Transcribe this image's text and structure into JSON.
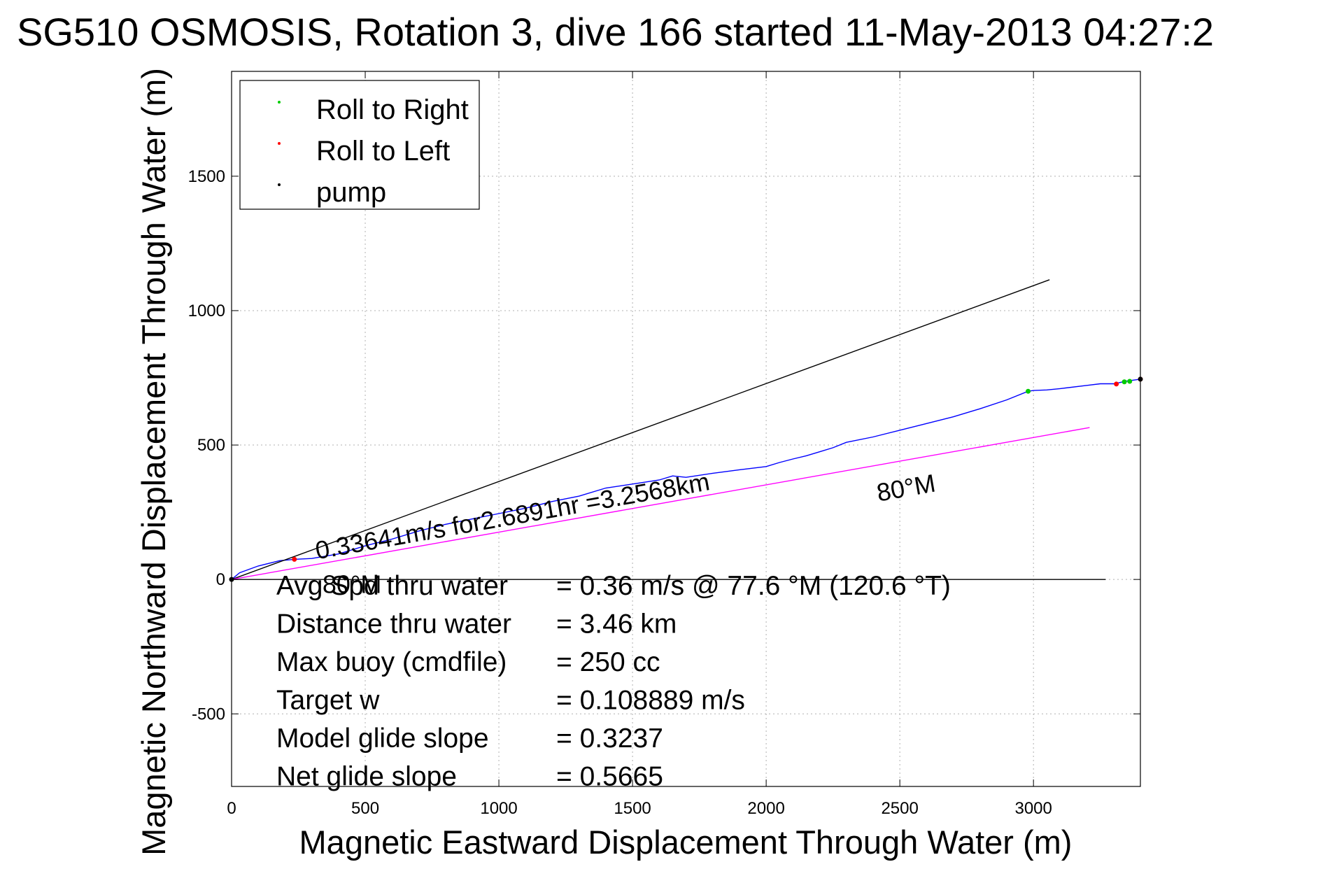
{
  "chart_data": {
    "type": "line",
    "title": "SG510 OSMOSIS, Rotation 3, dive 166 started 11-May-2013 04:27:2",
    "xlabel": "Magnetic Eastward Displacement Through Water (m)",
    "ylabel": "Magnetic Northward Displacement Through Water (m)",
    "xlim": [
      0,
      3400
    ],
    "ylim": [
      -770,
      1890
    ],
    "xticks": [
      0,
      500,
      1000,
      1500,
      2000,
      2500,
      3000
    ],
    "yticks": [
      -500,
      0,
      500,
      1000,
      1500
    ],
    "grid": true,
    "legend": {
      "placement": "top-left",
      "entries": [
        {
          "label": "Roll to Right",
          "color": "#00cc00"
        },
        {
          "label": "Roll to Left",
          "color": "#ff0000"
        },
        {
          "label": "pump",
          "color": "#000000"
        }
      ]
    },
    "series": [
      {
        "color": "#0000ff",
        "x": [
          0,
          30,
          100,
          180,
          240,
          300,
          400,
          500,
          600,
          700,
          800,
          900,
          1000,
          1100,
          1200,
          1300,
          1400,
          1500,
          1600,
          1650,
          1700,
          1800,
          1900,
          2000,
          2050,
          2100,
          2150,
          2200,
          2250,
          2300,
          2400,
          2500,
          2600,
          2700,
          2800,
          2900,
          2980,
          3000,
          3050,
          3100,
          3200,
          3250,
          3300,
          3350,
          3400
        ],
        "y": [
          0,
          25,
          50,
          70,
          75,
          78,
          95,
          125,
          150,
          180,
          205,
          225,
          245,
          265,
          290,
          310,
          340,
          355,
          370,
          385,
          380,
          395,
          408,
          420,
          435,
          448,
          460,
          475,
          490,
          510,
          530,
          555,
          580,
          605,
          635,
          668,
          700,
          703,
          705,
          710,
          722,
          728,
          728,
          738,
          745
        ]
      },
      {
        "color": "#000000",
        "x": [
          0,
          3060
        ],
        "y": [
          0,
          1115
        ]
      },
      {
        "color": "#ff00ff",
        "x": [
          0,
          3210
        ],
        "y": [
          0,
          565
        ]
      },
      {
        "color": "#000000",
        "x": [
          0,
          3270
        ],
        "y": [
          0,
          0
        ]
      }
    ],
    "markers": {
      "roll_right": {
        "color": "#00cc00",
        "x": [
          2980,
          3340,
          3360
        ],
        "y": [
          700,
          735,
          737
        ]
      },
      "roll_left": {
        "color": "#ff0000",
        "x": [
          235,
          3310,
          3400
        ],
        "y": [
          75,
          727,
          745
        ]
      },
      "pump": {
        "color": "#000000",
        "x": [
          0,
          3400
        ],
        "y": [
          0,
          745
        ]
      }
    },
    "annotations": [
      {
        "text": "0.33641m/s for2.6891hr =3.2568km",
        "x": 320,
        "y": 75
      },
      {
        "text": "80°M",
        "x": 2420,
        "y": 290
      },
      {
        "text": "80°M",
        "x": 340,
        "y": -50
      }
    ],
    "stats": [
      {
        "label": "Avg Spd thru water",
        "value": "=  0.36 m/s @  77.6 °M (120.6 °T)"
      },
      {
        "label": "Distance thru water",
        "value": "=  3.46 km"
      },
      {
        "label": "Max buoy (cmdfile)",
        "value": "= 250 cc"
      },
      {
        "label": "Target w",
        "value": "= 0.108889 m/s"
      },
      {
        "label": "Model glide slope",
        "value": "= 0.3237"
      },
      {
        "label": "Net glide slope",
        "value": "= 0.5665"
      }
    ]
  }
}
